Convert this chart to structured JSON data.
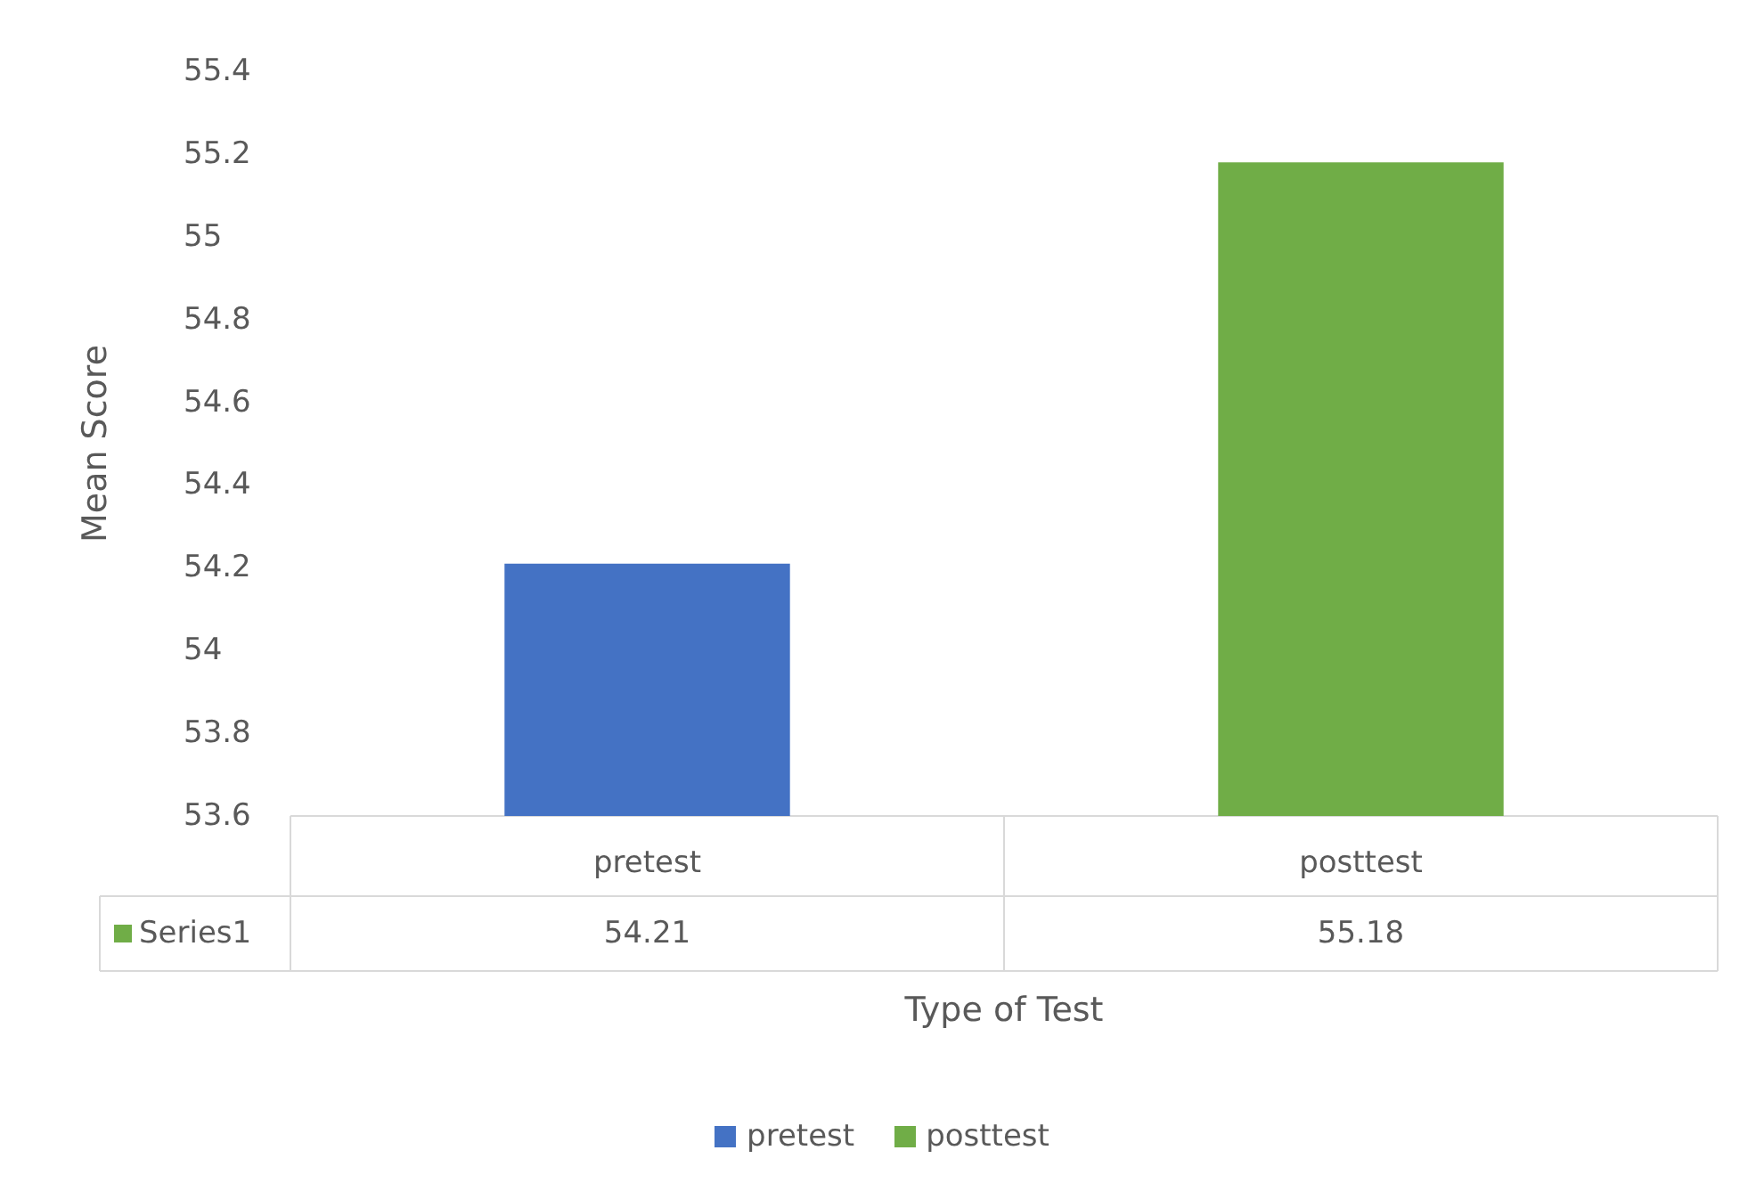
{
  "chart_data": {
    "type": "bar",
    "xlabel": "Type of Test",
    "ylabel": "Mean Score",
    "categories": [
      "pretest",
      "posttest"
    ],
    "series": [
      {
        "name": "Series1",
        "values": [
          54.21,
          55.18
        ]
      }
    ],
    "colors": [
      "#4472c4",
      "#70ad47"
    ],
    "ylim": [
      53.6,
      55.4
    ],
    "yticks": [
      53.6,
      53.8,
      54,
      54.2,
      54.4,
      54.6,
      54.8,
      55,
      55.2,
      55.4
    ],
    "grid": false,
    "legend": "bottom",
    "data_labels": true
  }
}
